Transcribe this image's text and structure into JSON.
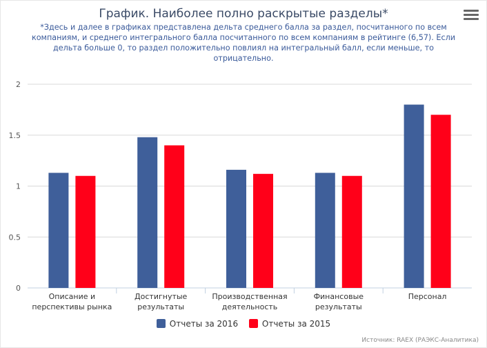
{
  "title": "График. Наиболее полно раскрытые разделы*",
  "subtitle": "*Здесь и далее в графиках представлена дельта среднего балла за раздел, посчитанного по всем компаниям, и среднего интегрального балла посчитанного по всем компаниям в рейтинге (6,57). Если дельта больше 0, то раздел положительно повлиял на интегральный балл, если меньше, то отрицательно.",
  "menu_icon": "hamburger-menu-icon",
  "credits": "Источник: RAEX (РАЭКС-Аналитика)",
  "chart_data": {
    "type": "bar",
    "categories": [
      [
        "Описание и",
        "перспективы рынка"
      ],
      [
        "Достигнутые",
        "результаты"
      ],
      [
        "Производственная",
        "деятельность"
      ],
      [
        "Финансовые",
        "результаты"
      ],
      [
        "Персонал"
      ]
    ],
    "series": [
      {
        "name": "Отчеты за 2016",
        "color": "#3f5f9a",
        "values": [
          1.13,
          1.48,
          1.16,
          1.13,
          1.8
        ]
      },
      {
        "name": "Отчеты за 2015",
        "color": "#ff0019",
        "values": [
          1.1,
          1.4,
          1.12,
          1.1,
          1.7
        ]
      }
    ],
    "yticks": [
      0,
      0.5,
      1,
      1.5,
      2
    ],
    "ytick_labels": [
      "0",
      "0.5",
      "1",
      "1.5",
      "2"
    ],
    "ylim": [
      0,
      2
    ],
    "grid": true,
    "legend_position": "bottom-center"
  }
}
